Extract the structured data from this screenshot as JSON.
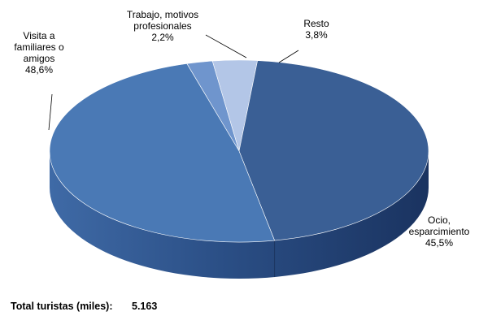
{
  "chart_data": {
    "type": "pie",
    "style": "3d",
    "slices": [
      {
        "label_lines": [
          "Trabajo, motivos",
          "profesionales",
          "2,2%"
        ],
        "value": 2.2,
        "color": "#6f95cd"
      },
      {
        "label_lines": [
          "Resto",
          "3,8%"
        ],
        "value": 3.8,
        "color": "#b3c6e7"
      },
      {
        "label_lines": [
          "Ocio,",
          "esparcimiento",
          "45,5%"
        ],
        "value": 45.5,
        "color": "#3a5f95"
      },
      {
        "label_lines": [
          "Visita a",
          "familiares o",
          "amigos",
          "48,6%"
        ],
        "value": 48.6,
        "color": "#4a79b5"
      }
    ]
  },
  "footer": {
    "total_label": "Total turistas (miles):",
    "total_value": "5.163"
  }
}
